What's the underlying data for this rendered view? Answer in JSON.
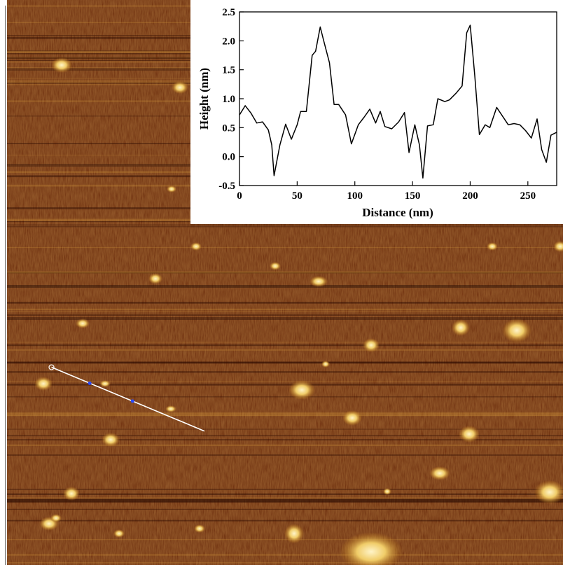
{
  "chart_data": {
    "type": "line",
    "xlabel": "Distance (nm)",
    "ylabel": "Height (nm)",
    "xlim": [
      0,
      275
    ],
    "ylim": [
      -0.5,
      2.5
    ],
    "x_ticks": [
      0,
      50,
      100,
      150,
      200,
      250
    ],
    "y_ticks": [
      -0.5,
      0.0,
      0.5,
      1.0,
      1.5,
      2.0,
      2.5
    ],
    "grid": false,
    "legend": "none",
    "series": [
      {
        "x": [
          0,
          5,
          10,
          15,
          20,
          25,
          28,
          30,
          35,
          40,
          45,
          50,
          53,
          58,
          63,
          66,
          70,
          73,
          78,
          82,
          86,
          92,
          97,
          103,
          108,
          113,
          118,
          122,
          126,
          132,
          138,
          143,
          147,
          152,
          156,
          159,
          163,
          168,
          172,
          178,
          182,
          188,
          193,
          197,
          200,
          204,
          208,
          213,
          217,
          223,
          227,
          233,
          238,
          243,
          248,
          253,
          258,
          262,
          266,
          270,
          275
        ],
        "y": [
          0.72,
          0.88,
          0.75,
          0.58,
          0.6,
          0.46,
          0.2,
          -0.33,
          0.2,
          0.56,
          0.3,
          0.55,
          0.78,
          0.78,
          1.75,
          1.82,
          2.24,
          2.0,
          1.62,
          0.9,
          0.9,
          0.72,
          0.22,
          0.55,
          0.68,
          0.82,
          0.58,
          0.78,
          0.52,
          0.48,
          0.6,
          0.76,
          0.07,
          0.55,
          0.2,
          -0.37,
          0.53,
          0.55,
          1.0,
          0.95,
          0.98,
          1.1,
          1.22,
          2.14,
          2.27,
          1.4,
          0.38,
          0.55,
          0.5,
          0.85,
          0.73,
          0.55,
          0.57,
          0.55,
          0.45,
          0.32,
          0.65,
          0.12,
          -0.1,
          0.37,
          0.42
        ]
      }
    ]
  },
  "colors": {
    "background_dark": "#4a1400",
    "background_mid": "#8a3a00",
    "feature_bright": "#e8b848",
    "feature_white": "#fff4c8",
    "scan_line": "#ffffff",
    "plot_line": "#000000"
  },
  "scan_line": {
    "from": [
      0.08,
      0.65
    ],
    "to": [
      0.355,
      0.763
    ]
  }
}
